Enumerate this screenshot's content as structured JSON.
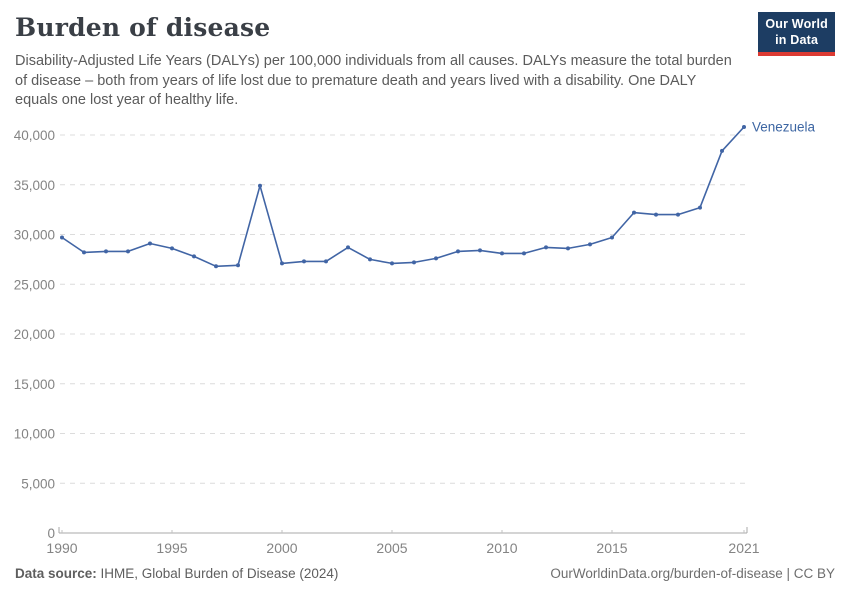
{
  "header": {
    "title": "Burden of disease",
    "subtitle": "Disability-Adjusted Life Years (DALYs) per 100,000 individuals from all causes. DALYs measure the total burden of disease – both from years of life lost due to premature death and years lived with a disability. One DALY equals one lost year of healthy life.",
    "logo": {
      "line1": "Our World",
      "line2": "in Data"
    }
  },
  "chart_data": {
    "type": "line",
    "title": "Burden of disease",
    "ylabel": "DALYs per 100,000 individuals",
    "x": [
      1990,
      1991,
      1992,
      1993,
      1994,
      1995,
      1996,
      1997,
      1998,
      1999,
      2000,
      2001,
      2002,
      2003,
      2004,
      2005,
      2006,
      2007,
      2008,
      2009,
      2010,
      2011,
      2012,
      2013,
      2014,
      2015,
      2016,
      2017,
      2018,
      2019,
      2020,
      2021
    ],
    "series": [
      {
        "name": "Venezuela",
        "values": [
          29700,
          28200,
          28300,
          28300,
          29100,
          28600,
          27800,
          26800,
          26900,
          34900,
          27100,
          27300,
          27300,
          28700,
          27500,
          27100,
          27200,
          27600,
          28300,
          28400,
          28100,
          28100,
          28700,
          28600,
          29000,
          29700,
          32200,
          32000,
          32000,
          32700,
          38400,
          40800
        ]
      }
    ],
    "xlim": [
      1990,
      2021
    ],
    "ylim": [
      0,
      40000
    ],
    "yticks": [
      0,
      5000,
      10000,
      15000,
      20000,
      25000,
      30000,
      35000,
      40000
    ],
    "xticks": [
      1990,
      1995,
      2000,
      2005,
      2010,
      2015,
      2021
    ],
    "grid": "dashed horizontal",
    "legend_position": "end-of-line label",
    "entity_label": "Venezuela",
    "colors": {
      "line": "#4165a5",
      "entity_label": "#3d66a3",
      "grid": "#dcdcdc",
      "axis": "#a9a9a9",
      "tick_label": "#848484"
    }
  },
  "footer": {
    "source_label": "Data source:",
    "source_value": " IHME, Global Burden of Disease (2024)",
    "credit": "OurWorldinData.org/burden-of-disease | CC BY"
  }
}
